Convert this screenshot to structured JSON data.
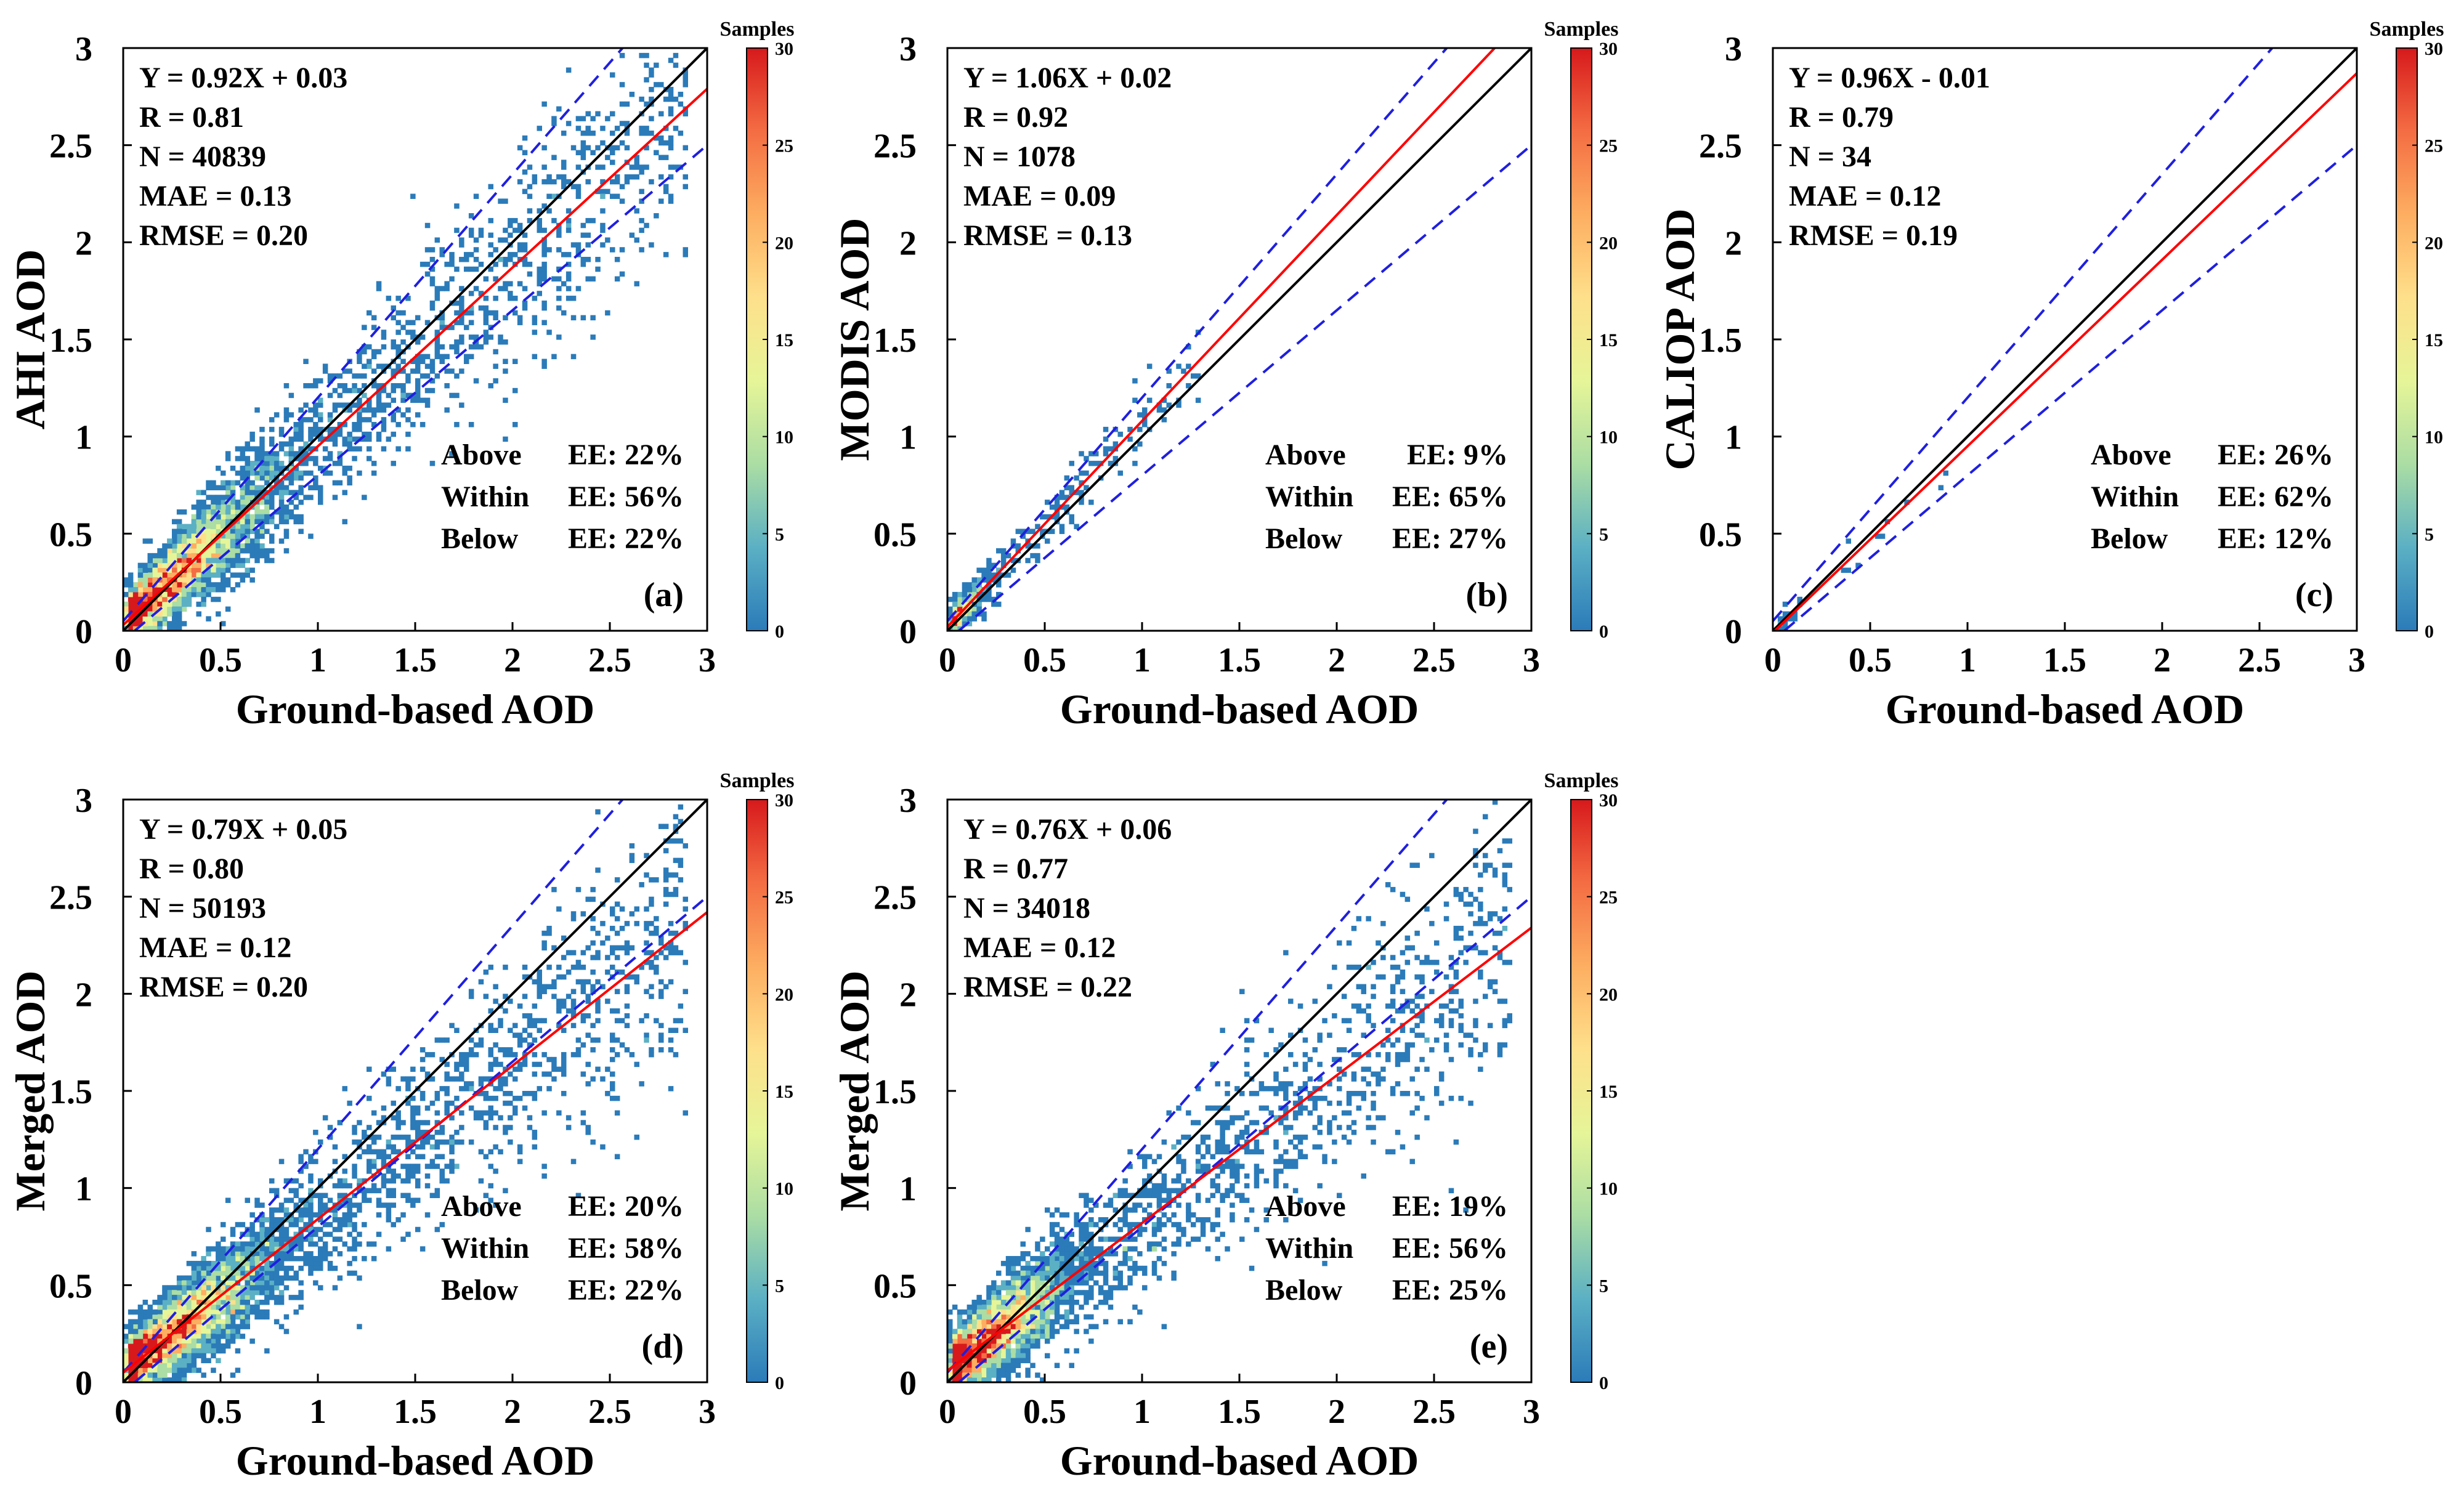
{
  "figure": {
    "colorbar_title": "Samples",
    "colorbar_ticks": [
      "0",
      "5",
      "10",
      "15",
      "20",
      "25",
      "30"
    ],
    "colorbar_colors": [
      "#2b7bb9",
      "#5bb0c4",
      "#abdda4",
      "#e6f598",
      "#fee08b",
      "#fdae61",
      "#f46d43",
      "#d7191c"
    ],
    "line_colors": {
      "one_to_one": "#000000",
      "fit": "#ff0000",
      "ee": "#1f1fe0"
    }
  },
  "chart_data": [
    {
      "type": "heatmap",
      "panel_label": "(a)",
      "xlabel": "Ground-based AOD",
      "ylabel": "AHI AOD",
      "xlim": [
        0,
        3
      ],
      "ylim": [
        0,
        3
      ],
      "xticks": [
        "0",
        "0.5",
        "1",
        "1.5",
        "2",
        "2.5",
        "3"
      ],
      "yticks": [
        "0",
        "0.5",
        "1",
        "1.5",
        "2",
        "2.5",
        "3"
      ],
      "stats": [
        "Y = 0.92X + 0.03",
        "R = 0.81",
        "N = 40839",
        "MAE = 0.13",
        "RMSE = 0.20"
      ],
      "ee": [
        {
          "name": "Above",
          "label": "EE: 22%"
        },
        {
          "name": "Within",
          "label": "EE: 56%"
        },
        {
          "name": "Below",
          "label": "EE: 22%"
        }
      ],
      "fit": {
        "slope": 0.92,
        "intercept": 0.03
      },
      "density": {
        "n_points": 5200,
        "max_x": 2.9,
        "spread": 0.3,
        "core_x": 0.55,
        "seed": 11
      }
    },
    {
      "type": "heatmap",
      "panel_label": "(b)",
      "xlabel": "Ground-based AOD",
      "ylabel": "MODIS AOD",
      "xlim": [
        0,
        3
      ],
      "ylim": [
        0,
        3
      ],
      "xticks": [
        "0",
        "0.5",
        "1",
        "1.5",
        "2",
        "2.5",
        "3"
      ],
      "yticks": [
        "0",
        "0.5",
        "1",
        "1.5",
        "2",
        "2.5",
        "3"
      ],
      "stats": [
        "Y = 1.06X + 0.02",
        "R = 0.92",
        "N = 1078",
        "MAE = 0.09",
        "RMSE = 0.13"
      ],
      "ee": [
        {
          "name": "Above",
          "label": "EE: 9%"
        },
        {
          "name": "Within",
          "label": "EE: 65%"
        },
        {
          "name": "Below",
          "label": "EE: 27%"
        }
      ],
      "fit": {
        "slope": 1.06,
        "intercept": 0.02
      },
      "density": {
        "n_points": 700,
        "max_x": 1.3,
        "spread": 0.16,
        "core_x": 0.15,
        "seed": 23
      }
    },
    {
      "type": "heatmap",
      "panel_label": "(c)",
      "xlabel": "Ground-based AOD",
      "ylabel": "CALIOP AOD",
      "xlim": [
        0,
        3
      ],
      "ylim": [
        0,
        3
      ],
      "xticks": [
        "0",
        "0.5",
        "1",
        "1.5",
        "2",
        "2.5",
        "3"
      ],
      "yticks": [
        "0",
        "0.5",
        "1",
        "1.5",
        "2",
        "2.5",
        "3"
      ],
      "stats": [
        "Y = 0.96X - 0.01",
        "R = 0.79",
        "N = 34",
        "MAE = 0.12",
        "RMSE = 0.19"
      ],
      "ee": [
        {
          "name": "Above",
          "label": "EE: 26%"
        },
        {
          "name": "Within",
          "label": "EE: 62%"
        },
        {
          "name": "Below",
          "label": "EE: 12%"
        }
      ],
      "fit": {
        "slope": 0.96,
        "intercept": -0.01
      },
      "density": {
        "n_points": 34,
        "max_x": 0.9,
        "spread": 0.1,
        "core_x": 0.1,
        "seed": 37
      }
    },
    {
      "type": "heatmap",
      "panel_label": "(d)",
      "xlabel": "Ground-based AOD",
      "ylabel": "Merged AOD",
      "xlim": [
        0,
        3
      ],
      "ylim": [
        0,
        3
      ],
      "xticks": [
        "0",
        "0.5",
        "1",
        "1.5",
        "2",
        "2.5",
        "3"
      ],
      "yticks": [
        "0",
        "0.5",
        "1",
        "1.5",
        "2",
        "2.5",
        "3"
      ],
      "stats": [
        "Y = 0.79X + 0.05",
        "R = 0.80",
        "N = 50193",
        "MAE = 0.12",
        "RMSE = 0.20"
      ],
      "ee": [
        {
          "name": "Above",
          "label": "EE: 20%"
        },
        {
          "name": "Within",
          "label": "EE: 58%"
        },
        {
          "name": "Below",
          "label": "EE: 22%"
        }
      ],
      "fit": {
        "slope": 0.79,
        "intercept": 0.05
      },
      "density": {
        "n_points": 5600,
        "max_x": 2.9,
        "spread": 0.3,
        "core_x": 0.55,
        "seed": 53
      }
    },
    {
      "type": "heatmap",
      "panel_label": "(e)",
      "xlabel": "Ground-based AOD",
      "ylabel": "Merged AOD",
      "xlim": [
        0,
        3
      ],
      "ylim": [
        0,
        3
      ],
      "xticks": [
        "0",
        "0.5",
        "1",
        "1.5",
        "2",
        "2.5",
        "3"
      ],
      "yticks": [
        "0",
        "0.5",
        "1",
        "1.5",
        "2",
        "2.5",
        "3"
      ],
      "stats": [
        "Y = 0.76X + 0.06",
        "R = 0.77",
        "N = 34018",
        "MAE = 0.12",
        "RMSE = 0.22"
      ],
      "ee": [
        {
          "name": "Above",
          "label": "EE: 19%"
        },
        {
          "name": "Within",
          "label": "EE: 56%"
        },
        {
          "name": "Below",
          "label": "EE: 25%"
        }
      ],
      "fit": {
        "slope": 0.76,
        "intercept": 0.06
      },
      "density": {
        "n_points": 4800,
        "max_x": 2.9,
        "spread": 0.32,
        "core_x": 0.45,
        "seed": 71
      }
    }
  ]
}
